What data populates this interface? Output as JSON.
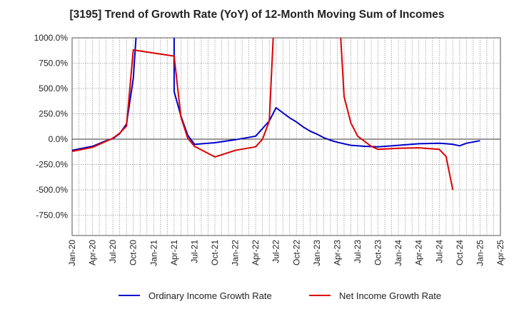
{
  "chart_data": {
    "type": "line",
    "title": "[3195]  Trend of Growth Rate (YoY) of 12-Month Moving Sum of Incomes",
    "xlabel": "",
    "ylabel": "",
    "x_ticks": [
      "Jan-20",
      "Apr-20",
      "Jul-20",
      "Oct-20",
      "Jan-21",
      "Apr-21",
      "Jul-21",
      "Oct-21",
      "Jan-22",
      "Apr-22",
      "Jul-22",
      "Oct-22",
      "Jan-23",
      "Apr-23",
      "Jul-23",
      "Oct-23",
      "Jan-24",
      "Apr-24",
      "Jul-24",
      "Oct-24",
      "Jan-25",
      "Apr-25"
    ],
    "y_ticks": [
      "1000.0%",
      "750.0%",
      "500.0%",
      "250.0%",
      "0.0%",
      "-250.0%",
      "-500.0%",
      "-750.0%"
    ],
    "ylim": [
      -950,
      1000
    ],
    "grid": true,
    "legend_position": "bottom-center",
    "series": [
      {
        "name": "Ordinary Income Growth Rate",
        "color": "#0000cc",
        "points": [
          [
            "Jan-20",
            -110
          ],
          [
            "Apr-20",
            -70
          ],
          [
            "Jun-20",
            -15
          ],
          [
            "Jul-20",
            5
          ],
          [
            "Aug-20",
            55
          ],
          [
            "Sep-20",
            150
          ],
          [
            "Oct-20",
            600
          ],
          [
            "Nov-20",
            1600
          ],
          [
            "Apr-21",
            1600
          ],
          [
            "Apr-21",
            470
          ],
          [
            "May-21",
            230
          ],
          [
            "Jun-21",
            40
          ],
          [
            "Jul-21",
            -50
          ],
          [
            "Oct-21",
            -35
          ],
          [
            "Jan-22",
            -5
          ],
          [
            "Apr-22",
            30
          ],
          [
            "Jun-22",
            180
          ],
          [
            "Jul-22",
            310
          ],
          [
            "Aug-22",
            260
          ],
          [
            "Sep-22",
            210
          ],
          [
            "Oct-22",
            170
          ],
          [
            "Nov-22",
            120
          ],
          [
            "Dec-22",
            80
          ],
          [
            "Jan-23",
            50
          ],
          [
            "Feb-23",
            15
          ],
          [
            "Mar-23",
            -10
          ],
          [
            "Apr-23",
            -30
          ],
          [
            "Jun-23",
            -60
          ],
          [
            "Jul-23",
            -65
          ],
          [
            "Aug-23",
            -70
          ],
          [
            "Oct-23",
            -75
          ],
          [
            "Jan-24",
            -60
          ],
          [
            "Apr-24",
            -45
          ],
          [
            "Jul-24",
            -40
          ],
          [
            "Aug-24",
            -45
          ],
          [
            "Sep-24",
            -50
          ],
          [
            "Oct-24",
            -65
          ],
          [
            "Nov-24",
            -40
          ],
          [
            "Jan-25",
            -15
          ]
        ]
      },
      {
        "name": "Net Income Growth Rate",
        "color": "#dd0000",
        "points": [
          [
            "Jan-20",
            -120
          ],
          [
            "Apr-20",
            -80
          ],
          [
            "Jun-20",
            -20
          ],
          [
            "Jul-20",
            10
          ],
          [
            "Aug-20",
            60
          ],
          [
            "Sep-20",
            130
          ],
          [
            "Oct-20",
            880
          ],
          [
            "Apr-21",
            820
          ],
          [
            "May-21",
            220
          ],
          [
            "Jun-21",
            10
          ],
          [
            "Jul-21",
            -70
          ],
          [
            "Oct-21",
            -175
          ],
          [
            "Jan-22",
            -110
          ],
          [
            "Apr-22",
            -75
          ],
          [
            "May-22",
            0
          ],
          [
            "Jun-22",
            180
          ],
          [
            "Jul-22",
            1600
          ],
          [
            "Apr-23",
            1600
          ],
          [
            "May-23",
            420
          ],
          [
            "Jun-23",
            160
          ],
          [
            "Jul-23",
            30
          ],
          [
            "Aug-23",
            -20
          ],
          [
            "Sep-23",
            -70
          ],
          [
            "Oct-23",
            -100
          ],
          [
            "Jan-24",
            -90
          ],
          [
            "Apr-24",
            -85
          ],
          [
            "Jul-24",
            -100
          ],
          [
            "Aug-24",
            -170
          ],
          [
            "Sep-24",
            -500
          ]
        ]
      }
    ]
  }
}
